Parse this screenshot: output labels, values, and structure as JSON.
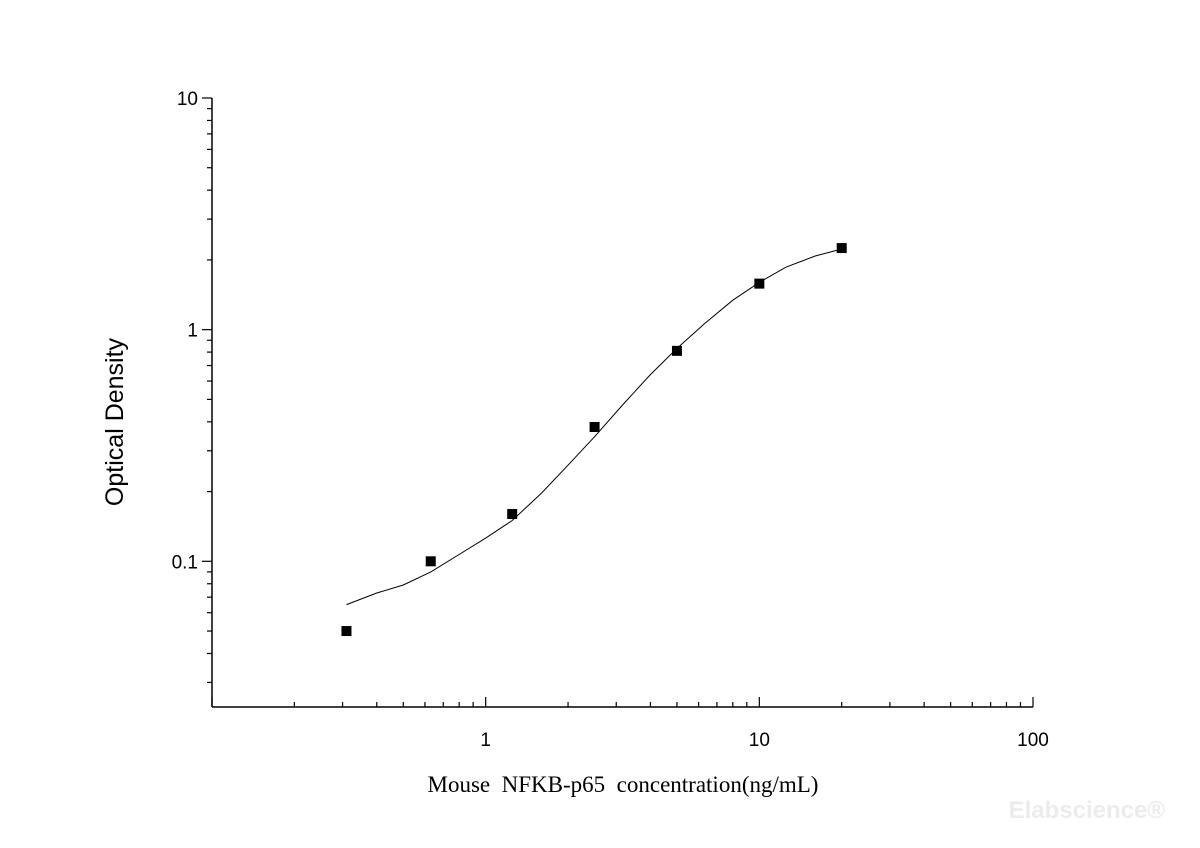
{
  "chart_data": {
    "type": "scatter",
    "title": "",
    "xlabel": "Mouse  NFKB-p65  concentration(ng/mL)",
    "ylabel": "Optical Density",
    "x_scale": "log",
    "y_scale": "log",
    "xlim": [
      0.1,
      100
    ],
    "ylim": [
      0.0235,
      10
    ],
    "x_ticks": [
      1,
      10,
      100
    ],
    "x_tick_labels": [
      "1",
      "10",
      "100"
    ],
    "y_ticks": [
      0.1,
      1,
      10
    ],
    "y_tick_labels": [
      "0.1",
      "1",
      "10"
    ],
    "grid": false,
    "series": [
      {
        "kind": "points",
        "marker": "square",
        "color": "#000000",
        "x": [
          0.31,
          0.63,
          1.25,
          2.5,
          5,
          10,
          20
        ],
        "y": [
          0.05,
          0.1,
          0.16,
          0.38,
          0.81,
          1.58,
          2.25
        ]
      },
      {
        "kind": "fit_line",
        "color": "#000000",
        "x": [
          0.31,
          0.4,
          0.5,
          0.63,
          0.8,
          1.0,
          1.25,
          1.6,
          2.0,
          2.5,
          3.2,
          4.0,
          5.0,
          6.3,
          8.0,
          10,
          12.5,
          16,
          20
        ],
        "y": [
          0.065,
          0.073,
          0.079,
          0.09,
          0.107,
          0.126,
          0.15,
          0.197,
          0.26,
          0.345,
          0.48,
          0.64,
          0.83,
          1.06,
          1.34,
          1.6,
          1.86,
          2.08,
          2.23
        ]
      }
    ]
  },
  "watermark": "Elabscience®"
}
